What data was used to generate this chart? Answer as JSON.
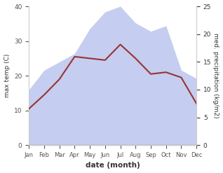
{
  "months": [
    "Jan",
    "Feb",
    "Mar",
    "Apr",
    "May",
    "Jun",
    "Jul",
    "Aug",
    "Sep",
    "Oct",
    "Nov",
    "Dec"
  ],
  "max_temp": [
    10.5,
    14.5,
    19.0,
    25.5,
    25.0,
    24.5,
    29.0,
    25.0,
    20.5,
    21.0,
    19.5,
    12.0
  ],
  "precipitation": [
    10.0,
    13.5,
    15.0,
    16.5,
    21.0,
    24.0,
    25.0,
    22.0,
    20.5,
    21.5,
    13.5,
    12.0
  ],
  "temp_color": "#993333",
  "precip_fill_color": "#c5cdf0",
  "ylabel_left": "max temp (C)",
  "ylabel_right": "med. precipitation (kg/m2)",
  "xlabel": "date (month)",
  "ylim_left": [
    0,
    40
  ],
  "ylim_right": [
    0,
    25
  ],
  "yticks_left": [
    0,
    10,
    20,
    30,
    40
  ],
  "yticks_right": [
    0,
    5,
    10,
    15,
    20,
    25
  ]
}
